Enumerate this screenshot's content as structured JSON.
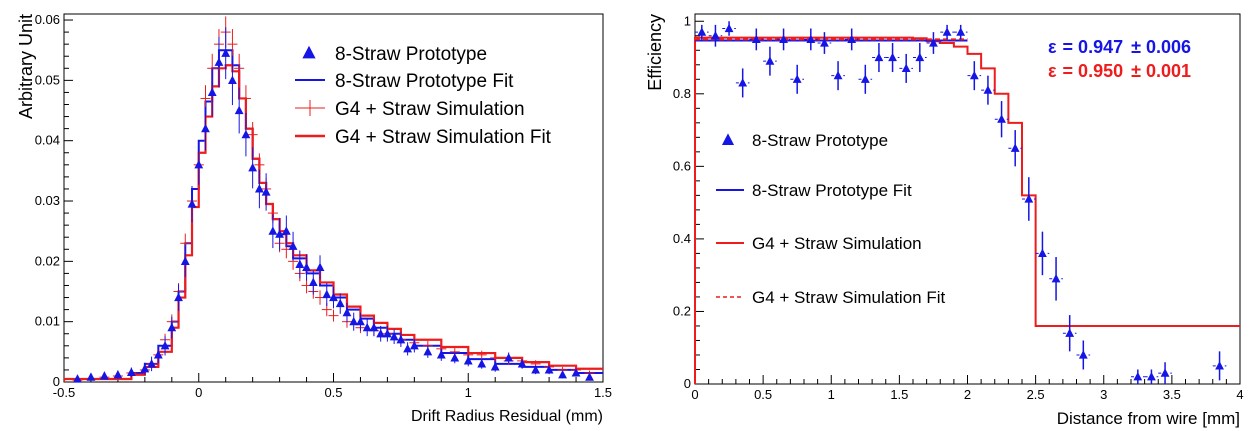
{
  "chart_data": [
    {
      "type": "histogram",
      "xlabel": "Drift Radius Residual (mm)",
      "ylabel": "Arbitrary Unit",
      "xlim": [
        -0.5,
        1.5
      ],
      "ylim": [
        0,
        0.061
      ],
      "x_ticks": [
        -0.5,
        0,
        0.5,
        1,
        1.5
      ],
      "y_ticks": [
        0,
        0.01,
        0.02,
        0.03,
        0.04,
        0.05,
        0.06
      ],
      "grid": false,
      "legend_position": "top-right",
      "colors": {
        "prototype": "#1515e6",
        "simulation": "#ee1c1c"
      },
      "series": [
        {
          "name": "8-Straw Prototype",
          "style": "markers",
          "x": [
            -0.45,
            -0.4,
            -0.35,
            -0.3,
            -0.25,
            -0.2,
            -0.175,
            -0.15,
            -0.125,
            -0.1,
            -0.075,
            -0.05,
            -0.025,
            0.0,
            0.025,
            0.05,
            0.075,
            0.1,
            0.125,
            0.15,
            0.175,
            0.2,
            0.225,
            0.25,
            0.275,
            0.3,
            0.325,
            0.35,
            0.375,
            0.4,
            0.425,
            0.45,
            0.475,
            0.5,
            0.525,
            0.55,
            0.575,
            0.6,
            0.625,
            0.65,
            0.675,
            0.7,
            0.725,
            0.75,
            0.775,
            0.8,
            0.85,
            0.9,
            0.95,
            1.0,
            1.05,
            1.1,
            1.15,
            1.2,
            1.25,
            1.3,
            1.35,
            1.4,
            1.45
          ],
          "y": [
            0.0005,
            0.0008,
            0.001,
            0.0012,
            0.0016,
            0.0022,
            0.003,
            0.0045,
            0.006,
            0.009,
            0.014,
            0.02,
            0.0295,
            0.036,
            0.042,
            0.048,
            0.053,
            0.0545,
            0.05,
            0.045,
            0.041,
            0.0355,
            0.032,
            0.0315,
            0.025,
            0.0245,
            0.025,
            0.0225,
            0.0195,
            0.019,
            0.0165,
            0.019,
            0.0145,
            0.014,
            0.013,
            0.0115,
            0.01,
            0.01,
            0.009,
            0.009,
            0.008,
            0.008,
            0.0075,
            0.007,
            0.0055,
            0.006,
            0.005,
            0.0045,
            0.004,
            0.0035,
            0.003,
            0.0025,
            0.004,
            0.003,
            0.002,
            0.002,
            0.0012,
            0.0015,
            0.0008
          ],
          "yerr": [
            0.0004,
            0.0005,
            0.0006,
            0.0007,
            0.0008,
            0.001,
            0.0012,
            0.0014,
            0.0016,
            0.0018,
            0.0022,
            0.0026,
            0.003,
            0.0033,
            0.0036,
            0.004,
            0.0042,
            0.0043,
            0.0041,
            0.0038,
            0.0036,
            0.0034,
            0.0032,
            0.0031,
            0.0028,
            0.0027,
            0.0026,
            0.0024,
            0.0023,
            0.0022,
            0.002,
            0.002,
            0.0019,
            0.0018,
            0.0017,
            0.0016,
            0.0015,
            0.0015,
            0.0014,
            0.0014,
            0.0013,
            0.0013,
            0.0012,
            0.0012,
            0.0011,
            0.0011,
            0.001,
            0.001,
            0.0009,
            0.0009,
            0.0008,
            0.0008,
            0.0009,
            0.0008,
            0.0007,
            0.0007,
            0.0006,
            0.0006,
            0.0005
          ]
        },
        {
          "name": "8-Straw Prototype Fit",
          "style": "step",
          "x": [
            -0.5,
            -0.25,
            -0.2,
            -0.15,
            -0.1,
            -0.075,
            -0.05,
            -0.025,
            0.0,
            0.025,
            0.05,
            0.075,
            0.1,
            0.125,
            0.15,
            0.175,
            0.2,
            0.225,
            0.25,
            0.275,
            0.3,
            0.325,
            0.35,
            0.4,
            0.45,
            0.5,
            0.55,
            0.6,
            0.65,
            0.7,
            0.75,
            0.8,
            0.9,
            1.0,
            1.1,
            1.2,
            1.3,
            1.4,
            1.5
          ],
          "y": [
            0.0005,
            0.0015,
            0.003,
            0.006,
            0.01,
            0.015,
            0.023,
            0.032,
            0.04,
            0.0465,
            0.052,
            0.055,
            0.055,
            0.0525,
            0.047,
            0.042,
            0.037,
            0.033,
            0.0295,
            0.027,
            0.0245,
            0.0225,
            0.0205,
            0.018,
            0.016,
            0.014,
            0.012,
            0.0105,
            0.009,
            0.008,
            0.007,
            0.006,
            0.0048,
            0.0038,
            0.003,
            0.0025,
            0.002,
            0.0015,
            0.0015
          ]
        },
        {
          "name": "G4 + Straw Simulation",
          "style": "crosses",
          "x": [
            -0.45,
            -0.4,
            -0.35,
            -0.3,
            -0.25,
            -0.2,
            -0.175,
            -0.15,
            -0.125,
            -0.1,
            -0.075,
            -0.05,
            -0.025,
            0.0,
            0.025,
            0.05,
            0.075,
            0.1,
            0.125,
            0.15,
            0.175,
            0.2,
            0.225,
            0.25,
            0.275,
            0.3,
            0.325,
            0.35,
            0.375,
            0.4,
            0.425,
            0.45,
            0.475,
            0.5,
            0.55,
            0.6,
            0.65,
            0.7,
            0.75,
            0.8,
            0.85,
            0.9,
            0.95,
            1.0,
            1.05,
            1.1,
            1.15,
            1.2,
            1.25,
            1.3,
            1.35,
            1.4,
            1.45
          ],
          "y": [
            0.0003,
            0.0005,
            0.0008,
            0.001,
            0.0015,
            0.002,
            0.003,
            0.0045,
            0.007,
            0.01,
            0.015,
            0.023,
            0.03,
            0.036,
            0.047,
            0.052,
            0.056,
            0.058,
            0.056,
            0.052,
            0.047,
            0.041,
            0.036,
            0.032,
            0.028,
            0.023,
            0.022,
            0.02,
            0.018,
            0.016,
            0.015,
            0.014,
            0.012,
            0.011,
            0.01,
            0.009,
            0.0085,
            0.008,
            0.007,
            0.0065,
            0.006,
            0.0055,
            0.005,
            0.0045,
            0.0045,
            0.004,
            0.0035,
            0.0035,
            0.003,
            0.0025,
            0.002,
            0.002,
            0.0015
          ],
          "yerr": [
            0.0002,
            0.0003,
            0.0003,
            0.0004,
            0.0005,
            0.0006,
            0.0007,
            0.0008,
            0.001,
            0.0012,
            0.0014,
            0.0016,
            0.0018,
            0.002,
            0.0022,
            0.0024,
            0.0025,
            0.0026,
            0.0025,
            0.0024,
            0.0022,
            0.0021,
            0.0019,
            0.0018,
            0.0017,
            0.0015,
            0.0015,
            0.0014,
            0.0013,
            0.0013,
            0.0012,
            0.0012,
            0.0011,
            0.001,
            0.001,
            0.0009,
            0.0009,
            0.0009,
            0.0008,
            0.0008,
            0.0008,
            0.0007,
            0.0007,
            0.0007,
            0.0007,
            0.0006,
            0.0006,
            0.0006,
            0.0006,
            0.0005,
            0.0005,
            0.0005,
            0.0004
          ]
        },
        {
          "name": "G4 + Straw Simulation Fit",
          "style": "step",
          "x": [
            -0.5,
            -0.25,
            -0.2,
            -0.15,
            -0.1,
            -0.075,
            -0.05,
            -0.025,
            0.0,
            0.025,
            0.05,
            0.075,
            0.1,
            0.125,
            0.15,
            0.175,
            0.2,
            0.225,
            0.25,
            0.275,
            0.3,
            0.325,
            0.35,
            0.4,
            0.45,
            0.5,
            0.55,
            0.6,
            0.65,
            0.7,
            0.75,
            0.8,
            0.9,
            1.0,
            1.1,
            1.2,
            1.3,
            1.4,
            1.5
          ],
          "y": [
            0.0005,
            0.0012,
            0.0025,
            0.005,
            0.009,
            0.014,
            0.021,
            0.029,
            0.038,
            0.044,
            0.049,
            0.052,
            0.0525,
            0.0515,
            0.047,
            0.042,
            0.037,
            0.033,
            0.0295,
            0.027,
            0.025,
            0.023,
            0.021,
            0.0185,
            0.0165,
            0.0145,
            0.0125,
            0.011,
            0.0098,
            0.0088,
            0.0078,
            0.007,
            0.0058,
            0.0048,
            0.004,
            0.0033,
            0.0027,
            0.0022,
            0.0022
          ]
        }
      ]
    },
    {
      "type": "scatter",
      "xlabel": "Distance from wire [mm]",
      "ylabel": "Efficiency",
      "xlim": [
        0,
        4
      ],
      "ylim": [
        0,
        1.02
      ],
      "x_ticks": [
        0,
        0.5,
        1,
        1.5,
        2,
        2.5,
        3,
        3.5,
        4
      ],
      "y_ticks": [
        0,
        0.2,
        0.4,
        0.6,
        0.8,
        1
      ],
      "grid": false,
      "legend_position": "center-left",
      "annotations": [
        {
          "symbol": "ε",
          "value": "= 0.947",
          "error": "± 0.006",
          "color": "#1515e6"
        },
        {
          "symbol": "ε",
          "value": "= 0.950",
          "error": "± 0.001",
          "color": "#ee1c1c"
        }
      ],
      "series": [
        {
          "name": "8-Straw Prototype",
          "style": "markers",
          "x": [
            0.05,
            0.15,
            0.25,
            0.35,
            0.45,
            0.55,
            0.65,
            0.75,
            0.85,
            0.95,
            1.05,
            1.15,
            1.25,
            1.35,
            1.45,
            1.55,
            1.65,
            1.75,
            1.85,
            1.95,
            2.05,
            2.15,
            2.25,
            2.35,
            2.45,
            2.55,
            2.65,
            2.75,
            2.85,
            3.25,
            3.35,
            3.45,
            3.85
          ],
          "y": [
            0.97,
            0.96,
            0.98,
            0.83,
            0.95,
            0.89,
            0.95,
            0.84,
            0.95,
            0.94,
            0.85,
            0.95,
            0.84,
            0.9,
            0.9,
            0.87,
            0.9,
            0.94,
            0.97,
            0.97,
            0.85,
            0.81,
            0.73,
            0.65,
            0.51,
            0.36,
            0.29,
            0.14,
            0.08,
            0.02,
            0.02,
            0.03,
            0.05
          ],
          "yerr": [
            0.02,
            0.03,
            0.02,
            0.04,
            0.03,
            0.04,
            0.03,
            0.04,
            0.03,
            0.03,
            0.04,
            0.03,
            0.04,
            0.04,
            0.04,
            0.04,
            0.04,
            0.03,
            0.02,
            0.02,
            0.04,
            0.04,
            0.05,
            0.05,
            0.06,
            0.06,
            0.06,
            0.05,
            0.04,
            0.02,
            0.02,
            0.03,
            0.04
          ]
        },
        {
          "name": "8-Straw Prototype Fit",
          "style": "line",
          "x": [
            0,
            2.0
          ],
          "y": [
            0.947,
            0.947
          ]
        },
        {
          "name": "G4 + Straw Simulation",
          "style": "step",
          "x": [
            0,
            1.6,
            1.7,
            1.8,
            1.9,
            2.0,
            2.1,
            2.2,
            2.3,
            2.4,
            2.5,
            4.0
          ],
          "y": [
            0.955,
            0.953,
            0.945,
            0.94,
            0.93,
            0.91,
            0.87,
            0.8,
            0.72,
            0.52,
            0.16,
            0.0
          ]
        },
        {
          "name": "G4 + Straw Simulation Fit",
          "style": "dashed",
          "x": [
            0,
            2.0
          ],
          "y": [
            0.95,
            0.95
          ]
        }
      ]
    }
  ]
}
